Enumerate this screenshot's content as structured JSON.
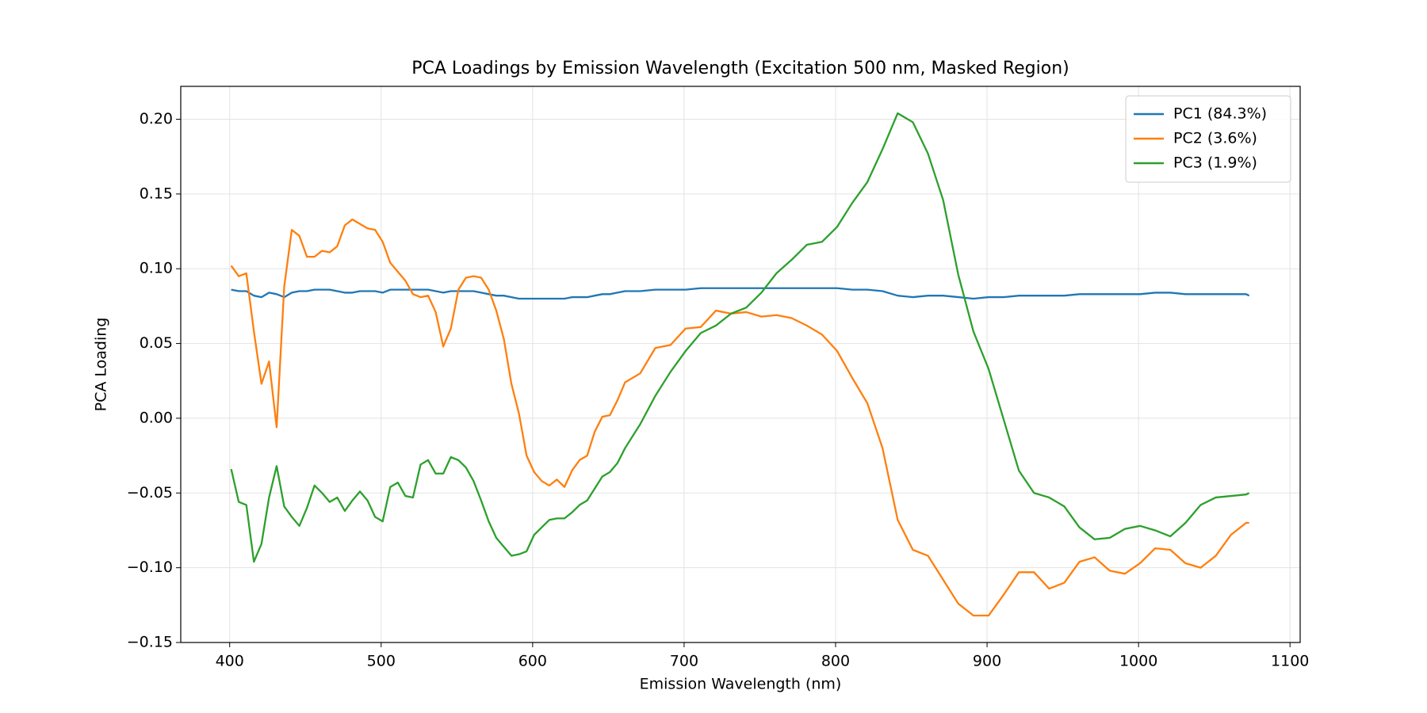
{
  "chart_data": {
    "type": "line",
    "title": "PCA Loadings by Emission Wavelength (Excitation 500 nm, Masked Region)",
    "xlabel": "Emission Wavelength (nm)",
    "ylabel": "PCA Loading",
    "x": [
      401,
      406,
      411,
      416,
      421,
      426,
      431,
      436,
      441,
      446,
      451,
      456,
      461,
      466,
      471,
      476,
      481,
      486,
      491,
      496,
      501,
      506,
      511,
      516,
      521,
      526,
      531,
      536,
      541,
      546,
      551,
      556,
      561,
      566,
      571,
      576,
      581,
      586,
      591,
      596,
      601,
      606,
      611,
      616,
      621,
      626,
      631,
      636,
      641,
      646,
      651,
      656,
      661,
      671,
      681,
      691,
      701,
      711,
      721,
      731,
      741,
      751,
      761,
      771,
      781,
      791,
      801,
      811,
      821,
      831,
      841,
      851,
      861,
      871,
      881,
      891,
      901,
      911,
      921,
      931,
      941,
      951,
      961,
      971,
      981,
      991,
      1001,
      1011,
      1021,
      1031,
      1041,
      1051,
      1061,
      1071,
      1073
    ],
    "series": [
      {
        "name": "PC1 (84.3%)",
        "color": "#1f77b4",
        "values": [
          0.086,
          0.085,
          0.085,
          0.082,
          0.081,
          0.084,
          0.083,
          0.081,
          0.084,
          0.085,
          0.085,
          0.086,
          0.086,
          0.086,
          0.085,
          0.084,
          0.084,
          0.085,
          0.085,
          0.085,
          0.084,
          0.086,
          0.086,
          0.086,
          0.086,
          0.086,
          0.086,
          0.085,
          0.084,
          0.085,
          0.085,
          0.085,
          0.085,
          0.084,
          0.083,
          0.082,
          0.082,
          0.081,
          0.08,
          0.08,
          0.08,
          0.08,
          0.08,
          0.08,
          0.08,
          0.081,
          0.081,
          0.081,
          0.082,
          0.083,
          0.083,
          0.084,
          0.085,
          0.085,
          0.086,
          0.086,
          0.086,
          0.087,
          0.087,
          0.087,
          0.087,
          0.087,
          0.087,
          0.087,
          0.087,
          0.087,
          0.087,
          0.086,
          0.086,
          0.085,
          0.082,
          0.081,
          0.082,
          0.082,
          0.081,
          0.08,
          0.081,
          0.081,
          0.082,
          0.082,
          0.082,
          0.082,
          0.083,
          0.083,
          0.083,
          0.083,
          0.083,
          0.084,
          0.084,
          0.083,
          0.083,
          0.083,
          0.083,
          0.083,
          0.082
        ]
      },
      {
        "name": "PC2 (3.6%)",
        "color": "#ff7f0e",
        "values": [
          0.102,
          0.095,
          0.097,
          0.058,
          0.023,
          0.038,
          -0.006,
          0.088,
          0.126,
          0.122,
          0.108,
          0.108,
          0.112,
          0.111,
          0.115,
          0.129,
          0.133,
          0.13,
          0.127,
          0.126,
          0.118,
          0.104,
          0.098,
          0.092,
          0.083,
          0.081,
          0.082,
          0.071,
          0.048,
          0.06,
          0.086,
          0.094,
          0.095,
          0.094,
          0.086,
          0.072,
          0.053,
          0.023,
          0.003,
          -0.025,
          -0.036,
          -0.042,
          -0.045,
          -0.041,
          -0.046,
          -0.035,
          -0.028,
          -0.025,
          -0.009,
          0.001,
          0.002,
          0.012,
          0.024,
          0.03,
          0.047,
          0.049,
          0.06,
          0.061,
          0.072,
          0.07,
          0.071,
          0.068,
          0.069,
          0.067,
          0.062,
          0.056,
          0.045,
          0.027,
          0.01,
          -0.02,
          -0.068,
          -0.088,
          -0.092,
          -0.108,
          -0.124,
          -0.132,
          -0.132,
          -0.118,
          -0.103,
          -0.103,
          -0.114,
          -0.11,
          -0.096,
          -0.093,
          -0.102,
          -0.104,
          -0.097,
          -0.087,
          -0.088,
          -0.097,
          -0.1,
          -0.092,
          -0.078,
          -0.07,
          -0.07
        ]
      },
      {
        "name": "PC3 (1.9%)",
        "color": "#2ca02c",
        "values": [
          -0.034,
          -0.056,
          -0.058,
          -0.096,
          -0.084,
          -0.053,
          -0.032,
          -0.059,
          -0.066,
          -0.072,
          -0.06,
          -0.045,
          -0.05,
          -0.056,
          -0.053,
          -0.062,
          -0.055,
          -0.049,
          -0.055,
          -0.066,
          -0.069,
          -0.046,
          -0.043,
          -0.052,
          -0.053,
          -0.031,
          -0.028,
          -0.037,
          -0.037,
          -0.026,
          -0.028,
          -0.033,
          -0.042,
          -0.055,
          -0.069,
          -0.08,
          -0.086,
          -0.092,
          -0.091,
          -0.089,
          -0.078,
          -0.073,
          -0.068,
          -0.067,
          -0.067,
          -0.063,
          -0.058,
          -0.055,
          -0.047,
          -0.039,
          -0.036,
          -0.03,
          -0.02,
          -0.004,
          0.015,
          0.031,
          0.045,
          0.057,
          0.062,
          0.07,
          0.074,
          0.084,
          0.097,
          0.106,
          0.116,
          0.118,
          0.128,
          0.144,
          0.158,
          0.18,
          0.204,
          0.198,
          0.177,
          0.146,
          0.096,
          0.058,
          0.033,
          -0.001,
          -0.035,
          -0.05,
          -0.053,
          -0.059,
          -0.073,
          -0.081,
          -0.08,
          -0.074,
          -0.072,
          -0.075,
          -0.079,
          -0.07,
          -0.058,
          -0.053,
          -0.052,
          -0.051,
          -0.05
        ]
      }
    ],
    "xlim": [
      367.7,
      1106.7
    ],
    "ylim": [
      -0.15,
      0.222
    ],
    "xticks": [
      400,
      500,
      600,
      700,
      800,
      900,
      1000,
      1100
    ],
    "yticks": [
      {
        "value": -0.15,
        "label": "−0.15"
      },
      {
        "value": -0.1,
        "label": "−0.10"
      },
      {
        "value": -0.05,
        "label": "−0.05"
      },
      {
        "value": 0,
        "label": "0.00"
      },
      {
        "value": 0.05,
        "label": "0.05"
      },
      {
        "value": 0.1,
        "label": "0.10"
      },
      {
        "value": 0.15,
        "label": "0.15"
      },
      {
        "value": 0.2,
        "label": "0.20"
      }
    ],
    "grid": true,
    "legend": "upper right"
  }
}
